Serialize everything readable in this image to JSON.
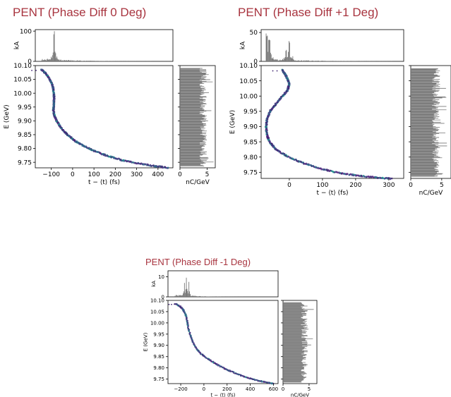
{
  "panels": [
    {
      "title": "PENT (Phase Diff 0 Deg)",
      "chart_data": {
        "type": "scatter",
        "xlabel": "t − ⟨t⟩ (fs)",
        "ylabel": "E (GeV)",
        "xticks": [
          -100,
          0,
          100,
          200,
          300,
          400
        ],
        "yticks": [
          9.75,
          9.8,
          9.85,
          9.9,
          9.95,
          10.0,
          10.05,
          10.1
        ],
        "xlim": [
          -175,
          470
        ],
        "ylim": [
          9.73,
          10.1
        ],
        "curve": [
          [
            -145,
            10.085
          ],
          [
            -130,
            10.075
          ],
          [
            -115,
            10.06
          ],
          [
            -100,
            10.04
          ],
          [
            -92,
            10.02
          ],
          [
            -88,
            10.0
          ],
          [
            -87,
            9.98
          ],
          [
            -88,
            9.96
          ],
          [
            -90,
            9.94
          ],
          [
            -86,
            9.92
          ],
          [
            -75,
            9.9
          ],
          [
            -55,
            9.875
          ],
          [
            -25,
            9.85
          ],
          [
            10,
            9.828
          ],
          [
            50,
            9.81
          ],
          [
            100,
            9.792
          ],
          [
            160,
            9.774
          ],
          [
            230,
            9.758
          ],
          [
            300,
            9.747
          ],
          [
            380,
            9.737
          ],
          [
            450,
            9.73
          ]
        ],
        "current": {
          "ylabel": "kA",
          "yticks": [
            0,
            100
          ],
          "ylim": [
            0,
            105
          ],
          "peaks": [
            {
              "x": -87,
              "y": 100
            },
            {
              "x": -98,
              "y": 12
            },
            {
              "x": -75,
              "y": 8
            }
          ]
        },
        "spectrum": {
          "xlabel": "nC/GeV",
          "xticks": [
            0,
            5
          ],
          "xlim": [
            0,
            6.5
          ],
          "ymin": 9.735,
          "ymax": 10.09,
          "level": 4.6
        }
      }
    },
    {
      "title": "PENT (Phase Diff +1 Deg)",
      "chart_data": {
        "type": "scatter",
        "xlabel": "t − ⟨t⟩ (fs)",
        "ylabel": "E (GeV)",
        "xticks": [
          0,
          100,
          200,
          300
        ],
        "yticks": [
          9.75,
          9.8,
          9.85,
          9.9,
          9.95,
          10.0,
          10.05,
          10.1
        ],
        "xlim": [
          -85,
          345
        ],
        "ylim": [
          9.73,
          10.1
        ],
        "curve": [
          [
            -20,
            10.085
          ],
          [
            -12,
            10.07
          ],
          [
            -5,
            10.055
          ],
          [
            0,
            10.04
          ],
          [
            -5,
            10.02
          ],
          [
            -20,
            10.0
          ],
          [
            -40,
            9.975
          ],
          [
            -58,
            9.95
          ],
          [
            -67,
            9.925
          ],
          [
            -70,
            9.9
          ],
          [
            -68,
            9.875
          ],
          [
            -60,
            9.85
          ],
          [
            -40,
            9.825
          ],
          [
            -10,
            9.805
          ],
          [
            30,
            9.785
          ],
          [
            80,
            9.766
          ],
          [
            140,
            9.75
          ],
          [
            200,
            9.74
          ],
          [
            260,
            9.733
          ],
          [
            310,
            9.729
          ]
        ],
        "current": {
          "ylabel": "kA",
          "yticks": [
            0,
            50
          ],
          "ylim": [
            0,
            55
          ],
          "peaks": [
            {
              "x": -68,
              "y": 50
            },
            {
              "x": -60,
              "y": 40
            },
            {
              "x": 0,
              "y": 38
            },
            {
              "x": -10,
              "y": 20
            }
          ]
        },
        "spectrum": {
          "xlabel": "nC/GeV",
          "xticks": [
            0,
            5
          ],
          "xlim": [
            0,
            6.5
          ],
          "ymin": 9.735,
          "ymax": 10.09,
          "level": 4.4
        }
      }
    },
    {
      "title": "PENT (Phase Diff -1 Deg)",
      "chart_data": {
        "type": "scatter",
        "xlabel": "t − ⟨t⟩ (fs)",
        "ylabel": "E (GeV)",
        "xticks": [
          -200,
          0,
          200,
          400,
          600
        ],
        "yticks": [
          9.75,
          9.8,
          9.85,
          9.9,
          9.95,
          10.0,
          10.05,
          10.1
        ],
        "xlim": [
          -310,
          640
        ],
        "ylim": [
          9.73,
          10.1
        ],
        "curve": [
          [
            -250,
            10.085
          ],
          [
            -210,
            10.075
          ],
          [
            -180,
            10.06
          ],
          [
            -160,
            10.04
          ],
          [
            -145,
            10.01
          ],
          [
            -135,
            9.98
          ],
          [
            -120,
            9.95
          ],
          [
            -100,
            9.92
          ],
          [
            -70,
            9.89
          ],
          [
            -30,
            9.865
          ],
          [
            20,
            9.845
          ],
          [
            80,
            9.825
          ],
          [
            150,
            9.805
          ],
          [
            220,
            9.787
          ],
          [
            300,
            9.77
          ],
          [
            380,
            9.755
          ],
          [
            460,
            9.744
          ],
          [
            540,
            9.735
          ],
          [
            600,
            9.73
          ]
        ],
        "current": {
          "ylabel": "kA",
          "yticks": [
            0,
            10
          ],
          "ylim": [
            0,
            13
          ],
          "peaks": [
            {
              "x": -150,
              "y": 11
            },
            {
              "x": -130,
              "y": 8
            },
            {
              "x": -170,
              "y": 7
            }
          ]
        },
        "spectrum": {
          "xlabel": "nC/GeV",
          "xticks": [
            0,
            5
          ],
          "xlim": [
            0,
            6.5
          ],
          "ymin": 9.735,
          "ymax": 10.09,
          "level": 4.4
        }
      }
    }
  ]
}
